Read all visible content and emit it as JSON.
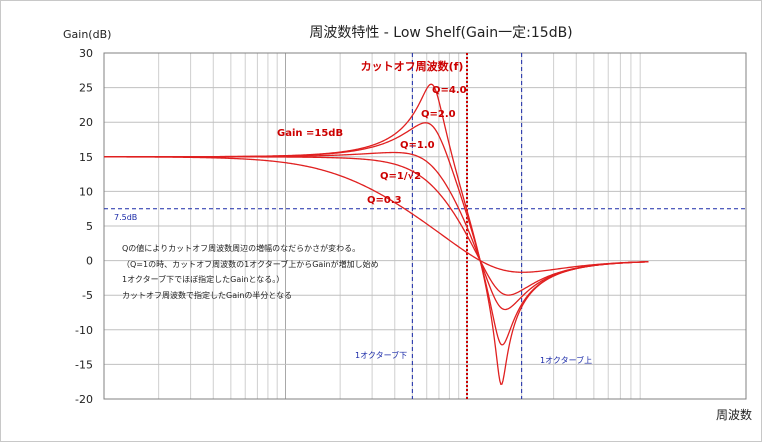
{
  "chart_data": {
    "type": "line",
    "title": "周波数特性 - Low Shelf(Gain一定:15dB)",
    "ylabel": "Gain(dB)",
    "xlabel": "周波数",
    "x_scale": "log",
    "x_units": "normalized to cutoff frequency (f/fc)",
    "xlim": [
      0.01,
      10
    ],
    "ylim": [
      -20,
      30
    ],
    "y_ticks": [
      30,
      25,
      20,
      15,
      10,
      5,
      0,
      -5,
      -10,
      -15,
      -20
    ],
    "grid": true,
    "gain_db": 15,
    "cutoff_marker": {
      "label": "カットオフ周波数(f)",
      "x": 1,
      "color": "#cc0000"
    },
    "octave_markers": [
      {
        "label": "1オクターブ下",
        "x": 0.5
      },
      {
        "label": "1オクターブ上",
        "x": 2
      }
    ],
    "half_gain_line": {
      "label": "7.5dB",
      "y": 7.5
    },
    "gain_label": "Gain =15dB",
    "curve_color": "#e02020",
    "series": [
      {
        "name": "Q=4.0",
        "q": 4.0
      },
      {
        "name": "Q=2.0",
        "q": 2.0
      },
      {
        "name": "Q=1.0",
        "q": 1.0
      },
      {
        "name": "Q=1/√2",
        "q": 0.7071
      },
      {
        "name": "Q=0.3",
        "q": 0.3
      }
    ],
    "annotation": [
      "Qの値によりカットオフ周波数周辺の増幅のなだらかさが変わる。",
      "（Q=1の時、カットオフ周波数の1オクターブ上からGainが増加し始め",
      "1オクターブ下でほぼ指定したGainとなる。）",
      "カットオフ周波数で指定したGainの半分となる"
    ]
  }
}
